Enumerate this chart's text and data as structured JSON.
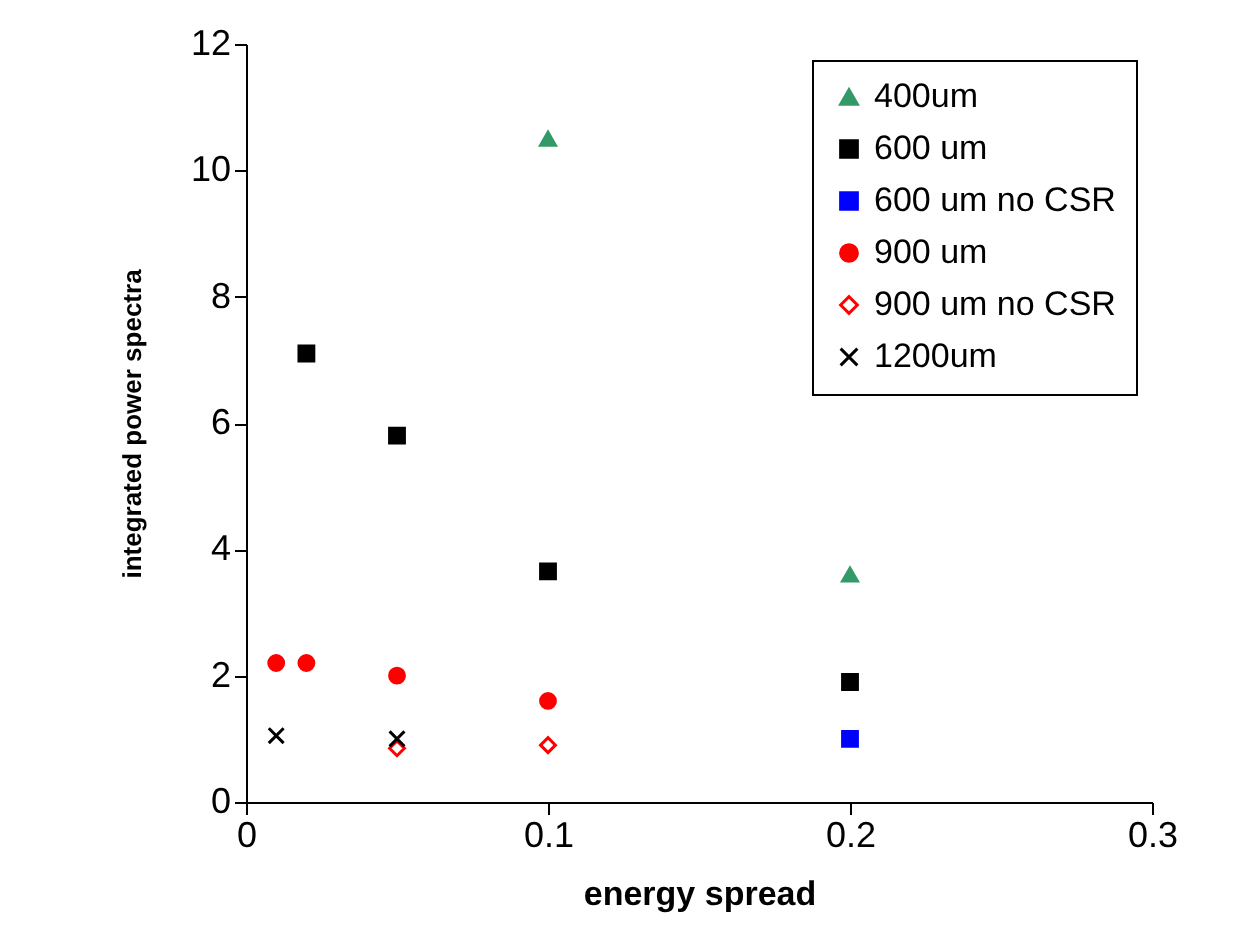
{
  "chart_data": {
    "type": "scatter",
    "xlabel": "energy spread",
    "ylabel": "integrated power spectra",
    "xlim": [
      0,
      0.3
    ],
    "xticks": [
      0,
      0.1,
      0.2,
      0.3
    ],
    "ylim": [
      0,
      12
    ],
    "yticks": [
      0,
      2,
      4,
      6,
      8,
      10,
      12
    ],
    "grid": false,
    "legend": "top right",
    "series": [
      {
        "name": "400um",
        "color": "#339966",
        "marker": "triangle",
        "x": [
          0.1,
          0.2
        ],
        "values": [
          10.5,
          3.6
        ]
      },
      {
        "name": "600 um",
        "color": "#000000",
        "marker": "square",
        "x": [
          0.02,
          0.05,
          0.1,
          0.2
        ],
        "values": [
          7.1,
          5.8,
          3.65,
          1.9
        ]
      },
      {
        "name": "600 um no CSR",
        "color": "#0000ff",
        "marker": "square",
        "x": [
          0.2
        ],
        "values": [
          1.0
        ]
      },
      {
        "name": "900 um",
        "color": "#ff0000",
        "marker": "circle",
        "x": [
          0.01,
          0.02,
          0.05,
          0.1
        ],
        "values": [
          2.2,
          2.2,
          2.0,
          1.6
        ]
      },
      {
        "name": "900 um no CSR",
        "color": "#ff0000",
        "marker": "diamond",
        "x": [
          0.05,
          0.1
        ],
        "values": [
          0.85,
          0.9
        ]
      },
      {
        "name": "1200um",
        "color": "#000000",
        "marker": "cross",
        "x": [
          0.01,
          0.05
        ],
        "values": [
          1.05,
          1.0
        ]
      }
    ]
  }
}
